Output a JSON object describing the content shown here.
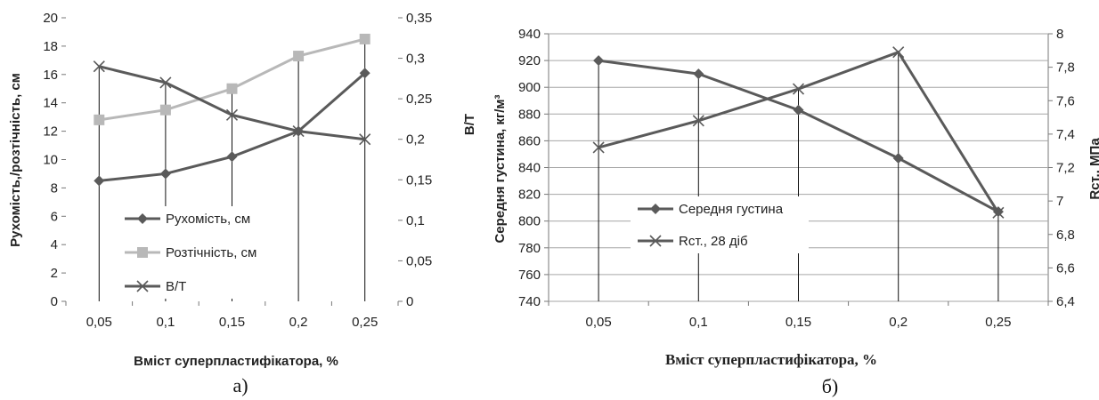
{
  "chart_data": [
    {
      "type": "line",
      "caption": "а)",
      "xlabel": "Вміст суперпластифікатора, %",
      "ylabel": "Рухомість,/розтічність, см",
      "y2label": "В/Т",
      "categories": [
        "0,05",
        "0,1",
        "0,15",
        "0,2",
        "0,25"
      ],
      "ylim": [
        0,
        20
      ],
      "y2lim": [
        0,
        0.35
      ],
      "yticks": [
        "0",
        "2",
        "4",
        "6",
        "8",
        "10",
        "12",
        "14",
        "16",
        "18",
        "20"
      ],
      "y2ticks": [
        "0",
        "0,05",
        "0,1",
        "0,15",
        "0,2",
        "0,25",
        "0,3",
        "0,35"
      ],
      "grid": false,
      "legend_position": "lower-left",
      "series": [
        {
          "name": "Рухомість, см",
          "axis": "left",
          "marker": "diamond",
          "color": "#5a5a5a",
          "values": [
            8.5,
            9.0,
            10.2,
            12.0,
            16.1
          ]
        },
        {
          "name": "Розтічність, см",
          "axis": "left",
          "marker": "square",
          "color": "#b8b8b8",
          "values": [
            12.8,
            13.5,
            15.0,
            17.3,
            18.5
          ]
        },
        {
          "name": "В/Т",
          "axis": "right",
          "marker": "x",
          "color": "#5a5a5a",
          "values": [
            0.29,
            0.27,
            0.23,
            0.21,
            0.2
          ]
        }
      ]
    },
    {
      "type": "line",
      "caption": "б)",
      "xlabel": "Вміст суперпластифікатора, %",
      "ylabel": "Середня густина, кг/м³",
      "y2label": "Rст., МПа",
      "categories": [
        "0,05",
        "0,1",
        "0,15",
        "0,2",
        "0,25"
      ],
      "ylim": [
        740,
        940
      ],
      "y2lim": [
        6.4,
        8
      ],
      "yticks": [
        "740",
        "760",
        "780",
        "800",
        "820",
        "840",
        "860",
        "880",
        "900",
        "920",
        "940"
      ],
      "y2ticks": [
        "6,4",
        "6,6",
        "6,8",
        "7",
        "7,2",
        "7,4",
        "7,6",
        "7,8",
        "8"
      ],
      "grid": true,
      "legend_position": "lower-center",
      "series": [
        {
          "name": "Середня густина",
          "axis": "left",
          "marker": "diamond",
          "color": "#5a5a5a",
          "values": [
            920,
            910,
            883,
            847,
            807
          ]
        },
        {
          "name": "Rст., 28 діб",
          "axis": "right",
          "marker": "x",
          "color": "#5a5a5a",
          "values": [
            7.32,
            7.48,
            7.67,
            7.89,
            6.93
          ]
        }
      ]
    }
  ]
}
